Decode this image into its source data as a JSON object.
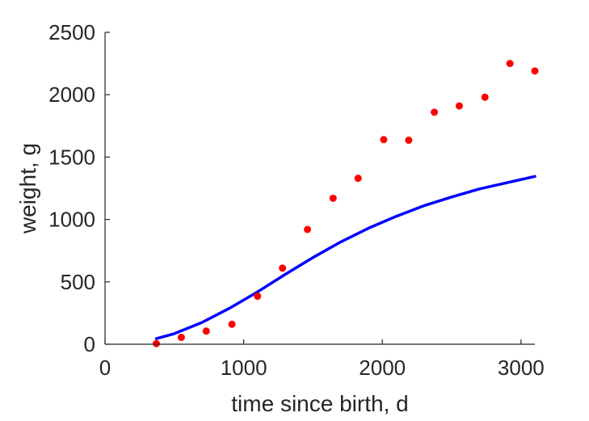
{
  "chart_data": {
    "type": "scatter",
    "title": "",
    "xlabel": "time since birth, d",
    "ylabel": "weight, g",
    "xlim": [
      0,
      3100
    ],
    "ylim": [
      0,
      2500
    ],
    "xticks": [
      0,
      1000,
      2000,
      3000
    ],
    "yticks": [
      0,
      500,
      1000,
      1500,
      2000,
      2500
    ],
    "xtick_labels": [
      "0",
      "1000",
      "2000",
      "3000"
    ],
    "ytick_labels": [
      "0",
      "500",
      "1000",
      "1500",
      "2000",
      "2500"
    ],
    "grid": false,
    "legend": "none",
    "series": [
      {
        "kind": "scatter",
        "color": "#ff0000",
        "x": [
          370,
          550,
          730,
          915,
          1100,
          1280,
          1460,
          1645,
          1825,
          2010,
          2190,
          2375,
          2555,
          2740,
          2920,
          3100
        ],
        "y": [
          5,
          55,
          105,
          160,
          385,
          610,
          920,
          1170,
          1330,
          1640,
          1635,
          1860,
          1910,
          1980,
          2250,
          2190
        ]
      },
      {
        "kind": "line",
        "color": "#0000ff",
        "x": [
          370,
          500,
          700,
          900,
          1100,
          1300,
          1500,
          1700,
          1900,
          2100,
          2300,
          2500,
          2700,
          2900,
          3100
        ],
        "y": [
          45,
          85,
          175,
          290,
          420,
          560,
          695,
          820,
          930,
          1025,
          1110,
          1180,
          1245,
          1295,
          1345
        ]
      }
    ]
  }
}
